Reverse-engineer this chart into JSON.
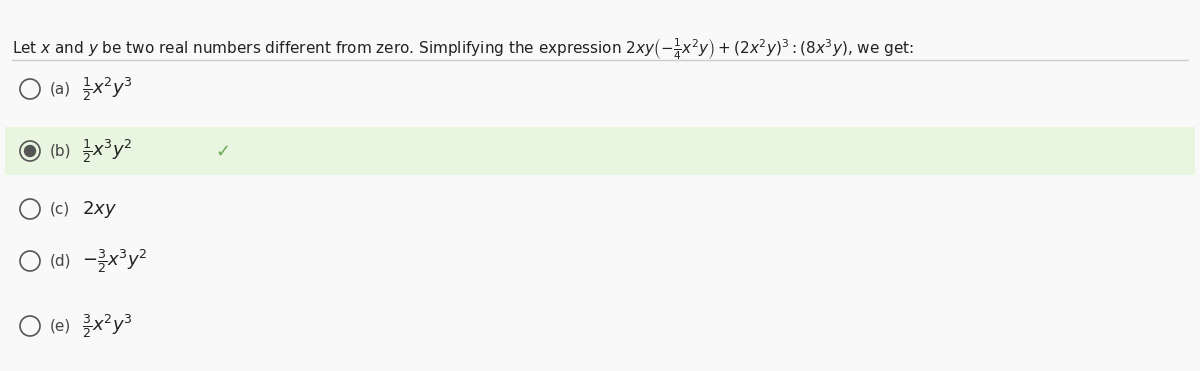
{
  "bg_color": "#f9f9f9",
  "header_text": "Let $x$ and $y$ be two real numbers different from zero. Simplifying the expression $2xy\\left(-\\frac{1}{4}x^2y\\right) + (2x^2y)^3 : (8x^3y)$, we get:",
  "options": [
    {
      "label": "a",
      "formula": "$\\frac{1}{2}x^2y^3$",
      "selected": false,
      "correct": false
    },
    {
      "label": "b",
      "formula": "$\\frac{1}{2}x^3y^2$",
      "selected": true,
      "correct": true
    },
    {
      "label": "c",
      "formula": "$2xy$",
      "selected": false,
      "correct": false
    },
    {
      "label": "d",
      "formula": "$-\\frac{3}{2}x^3y^2$",
      "selected": false,
      "correct": false
    },
    {
      "label": "e",
      "formula": "$\\frac{3}{2}x^2y^3$",
      "selected": false,
      "correct": false
    }
  ],
  "correct_bg": "#e8f5e0",
  "correct_border": "#a0c878",
  "header_line_color": "#cccccc",
  "radio_color": "#555555",
  "text_color": "#222222",
  "label_color": "#444444"
}
